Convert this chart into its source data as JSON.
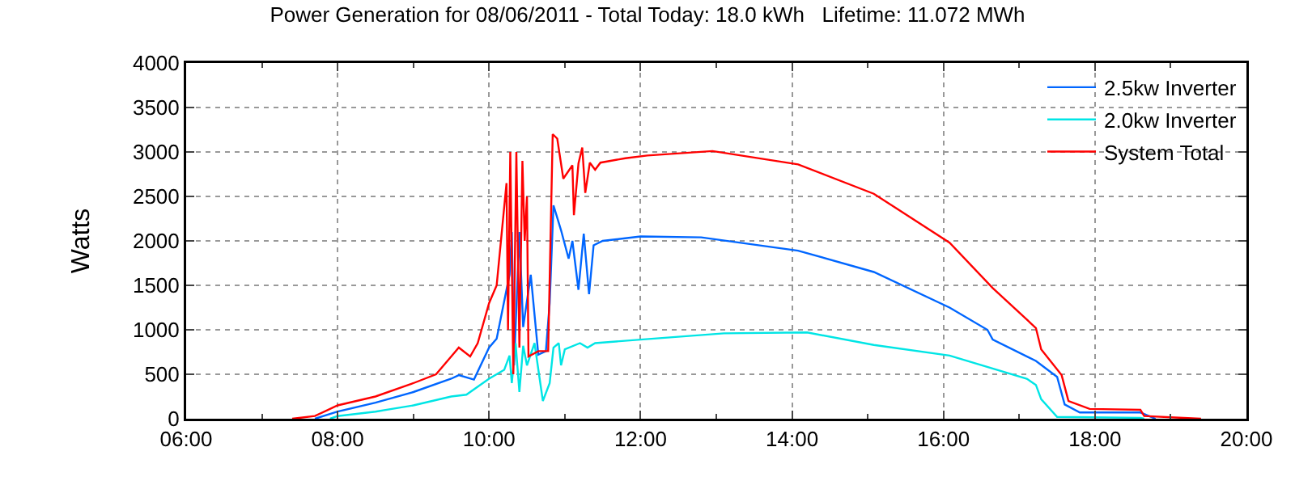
{
  "chart_data": {
    "type": "line",
    "title": "Power Generation for 08/06/2011 - Total Today: 18.0 kWh   Lifetime: 11.072 MWh",
    "ylabel": "Watts",
    "xlim": [
      6,
      20
    ],
    "xticks": [
      {
        "value": 6,
        "label": "06:00"
      },
      {
        "value": 8,
        "label": "08:00"
      },
      {
        "value": 10,
        "label": "10:00"
      },
      {
        "value": 12,
        "label": "12:00"
      },
      {
        "value": 14,
        "label": "14:00"
      },
      {
        "value": 16,
        "label": "16:00"
      },
      {
        "value": 18,
        "label": "18:00"
      },
      {
        "value": 20,
        "label": "20:00"
      }
    ],
    "ylim": [
      0,
      4000
    ],
    "yticks": [
      0,
      500,
      1000,
      1500,
      2000,
      2500,
      3000,
      3500,
      4000
    ],
    "grid": true,
    "legend": "top right",
    "marker": "none",
    "line_style": "solid",
    "series": [
      {
        "name": "2.5kw Inverter",
        "color": "#0066ff",
        "x": [
          7.7,
          8.0,
          8.5,
          9.0,
          9.5,
          9.6,
          9.8,
          10.0,
          10.1,
          10.27,
          10.3,
          10.33,
          10.4,
          10.45,
          10.55,
          10.65,
          10.75,
          10.8,
          10.85,
          10.95,
          11.05,
          11.1,
          11.18,
          11.25,
          11.32,
          11.38,
          11.5,
          12.0,
          12.8,
          14.08,
          15.08,
          16.08,
          16.58,
          16.65,
          17.22,
          17.5,
          17.6,
          17.8,
          18.6,
          18.8
        ],
        "values": [
          0,
          80,
          180,
          300,
          450,
          490,
          440,
          800,
          900,
          1620,
          2100,
          600,
          2100,
          1030,
          1620,
          720,
          760,
          1300,
          2400,
          2120,
          1800,
          2000,
          1450,
          2080,
          1400,
          1950,
          2000,
          2050,
          2040,
          1890,
          1650,
          1250,
          1000,
          890,
          650,
          470,
          160,
          70,
          70,
          0
        ]
      },
      {
        "name": "2.0kw Inverter",
        "color": "#00e5e5",
        "x": [
          7.9,
          8.0,
          8.5,
          9.0,
          9.5,
          9.7,
          10.0,
          10.2,
          10.27,
          10.3,
          10.35,
          10.4,
          10.45,
          10.5,
          10.6,
          10.71,
          10.8,
          10.85,
          10.92,
          10.95,
          11.0,
          11.2,
          11.3,
          11.4,
          12.0,
          13.1,
          14.2,
          15.08,
          16.08,
          17.1,
          17.22,
          17.29,
          17.5,
          18.6,
          18.65
        ],
        "values": [
          0,
          30,
          80,
          150,
          250,
          270,
          450,
          550,
          710,
          400,
          850,
          300,
          820,
          600,
          850,
          200,
          400,
          800,
          850,
          600,
          780,
          850,
          800,
          850,
          890,
          960,
          970,
          830,
          710,
          450,
          380,
          220,
          20,
          10,
          0
        ]
      },
      {
        "name": "System Total",
        "color": "#ff0000",
        "x": [
          7.4,
          7.7,
          8.0,
          8.5,
          9.0,
          9.3,
          9.5,
          9.6,
          9.75,
          9.85,
          10.0,
          10.1,
          10.23,
          10.25,
          10.28,
          10.32,
          10.36,
          10.4,
          10.44,
          10.47,
          10.5,
          10.52,
          10.65,
          10.78,
          10.84,
          10.9,
          10.98,
          11.1,
          11.12,
          11.18,
          11.23,
          11.27,
          11.33,
          11.4,
          11.47,
          11.8,
          12.09,
          12.95,
          14.08,
          15.08,
          16.08,
          16.65,
          17.22,
          17.29,
          17.56,
          17.65,
          17.93,
          18.6,
          18.65,
          19.4
        ],
        "values": [
          0,
          30,
          150,
          250,
          400,
          500,
          700,
          800,
          700,
          850,
          1300,
          1500,
          2650,
          1000,
          3000,
          500,
          3000,
          800,
          2900,
          2000,
          2500,
          700,
          760,
          760,
          3200,
          3150,
          2700,
          2850,
          2290,
          2870,
          3050,
          2540,
          2880,
          2800,
          2880,
          2930,
          2960,
          3010,
          2860,
          2530,
          1980,
          1470,
          1020,
          780,
          490,
          200,
          110,
          100,
          30,
          0
        ]
      }
    ]
  }
}
